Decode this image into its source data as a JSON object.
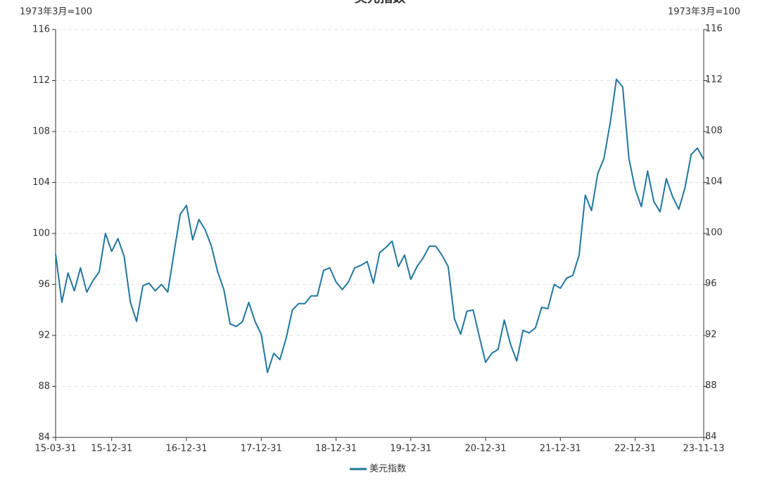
{
  "chart_data": {
    "type": "line",
    "title": "美元指数",
    "y_label": "1973年3月=100",
    "y2_label": "1973年3月=100",
    "categories": [
      "15-03-31",
      null,
      null,
      null,
      null,
      null,
      null,
      null,
      null,
      "15-12-31",
      null,
      null,
      null,
      null,
      null,
      null,
      null,
      null,
      null,
      null,
      null,
      "16-12-31",
      null,
      null,
      null,
      null,
      null,
      null,
      null,
      null,
      null,
      null,
      null,
      "17-12-31",
      null,
      null,
      null,
      null,
      null,
      null,
      null,
      null,
      null,
      null,
      null,
      "18-12-31",
      null,
      null,
      null,
      null,
      null,
      null,
      null,
      null,
      null,
      null,
      null,
      "19-12-31",
      null,
      null,
      null,
      null,
      null,
      null,
      null,
      null,
      null,
      null,
      null,
      "20-12-31",
      null,
      null,
      null,
      null,
      null,
      null,
      null,
      null,
      null,
      null,
      null,
      "21-12-31",
      null,
      null,
      null,
      null,
      null,
      null,
      null,
      null,
      null,
      null,
      null,
      "22-12-31",
      null,
      null,
      null,
      null,
      null,
      null,
      null,
      null,
      null,
      null,
      "23-11-13"
    ],
    "series": [
      {
        "name": "美元指数",
        "color": "#21769f",
        "values": [
          98.4,
          94.6,
          96.9,
          95.5,
          97.3,
          95.4,
          96.3,
          97.0,
          100.0,
          98.6,
          99.6,
          98.2,
          94.6,
          93.1,
          95.9,
          96.1,
          95.5,
          96.0,
          95.4,
          98.5,
          101.5,
          102.2,
          99.5,
          101.1,
          100.3,
          99.0,
          97.0,
          95.6,
          92.9,
          92.7,
          93.1,
          94.6,
          93.1,
          92.1,
          89.1,
          90.6,
          90.1,
          91.8,
          94.0,
          94.5,
          94.5,
          95.1,
          95.1,
          97.1,
          97.3,
          96.2,
          95.6,
          96.2,
          97.3,
          97.5,
          97.8,
          96.1,
          98.5,
          98.9,
          99.4,
          97.4,
          98.3,
          96.4,
          97.4,
          98.1,
          99.0,
          99.0,
          98.3,
          97.4,
          93.3,
          92.1,
          93.9,
          94.0,
          91.9,
          89.9,
          90.6,
          90.9,
          93.2,
          91.3,
          90.0,
          92.4,
          92.2,
          92.6,
          94.2,
          94.1,
          96.0,
          95.7,
          96.5,
          96.7,
          98.3,
          103.0,
          101.8,
          104.7,
          105.9,
          108.7,
          112.1,
          111.5,
          105.9,
          103.5,
          102.1,
          104.9,
          102.5,
          101.7,
          104.3,
          102.9,
          101.9,
          103.6,
          106.2,
          106.7,
          105.8
        ]
      }
    ],
    "ylim": [
      84,
      116
    ],
    "yticks": [
      84,
      88,
      92,
      96,
      100,
      104,
      108,
      112,
      116
    ],
    "y2lim": [
      84,
      116
    ],
    "y2ticks": [
      84,
      88,
      92,
      96,
      100,
      104,
      108,
      112,
      116
    ],
    "grid": true
  }
}
